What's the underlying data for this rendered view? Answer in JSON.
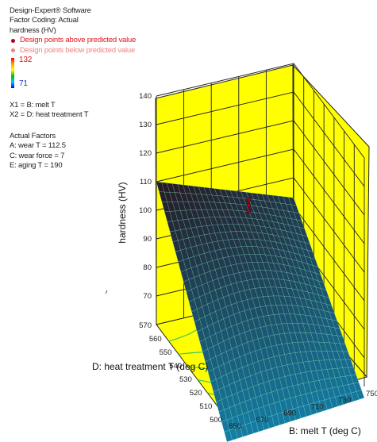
{
  "info": {
    "software": "Design-Expert® Software",
    "factor_coding": "Factor Coding: Actual",
    "response": "hardness (HV)",
    "legend_above": "Design points above predicted value",
    "legend_below": "Design points below predicted value",
    "range_max": "132",
    "range_min": "71",
    "x1": "X1 = B: melt T",
    "x2": "X2 = D: heat treatment T",
    "actual_factors_title": "Actual Factors",
    "factor_a": "A: wear T = 112.5",
    "factor_c": "C: wear force = 7",
    "factor_e": "E: aging T = 190"
  },
  "colors": {
    "wall": "#ffff00",
    "grid": "#222222",
    "contour": "#3cc85a",
    "surface_line": "#7fffe0",
    "above_point": "#b0001e",
    "below_point": "#f08080"
  },
  "chart_data": {
    "type": "surface",
    "title": "",
    "xlabel": "B: melt T (deg C)",
    "ylabel": "D: heat treatment T (deg C)",
    "zlabel": "hardness (HV)",
    "xlim": [
      650,
      750
    ],
    "ylim": [
      500,
      570
    ],
    "zlim": [
      60,
      140
    ],
    "x_ticks": [
      "650",
      "670",
      "690",
      "710",
      "730",
      "750"
    ],
    "y_ticks": [
      "500",
      "510",
      "520",
      "530",
      "540",
      "550",
      "560",
      "570"
    ],
    "z_ticks": [
      "70",
      "80",
      "90",
      "100",
      "110",
      "120",
      "130",
      "140"
    ],
    "corner_values": [
      {
        "x": 650,
        "y": 570,
        "z": 110
      },
      {
        "x": 750,
        "y": 570,
        "z": 93
      },
      {
        "x": 750,
        "y": 500,
        "z": 56
      },
      {
        "x": 650,
        "y": 500,
        "z": 52
      }
    ],
    "design_points": [
      {
        "z": 100,
        "above": true
      },
      {
        "z": 98,
        "above": true
      },
      {
        "z": 96,
        "above": true
      }
    ],
    "color_range": [
      71,
      132
    ]
  }
}
